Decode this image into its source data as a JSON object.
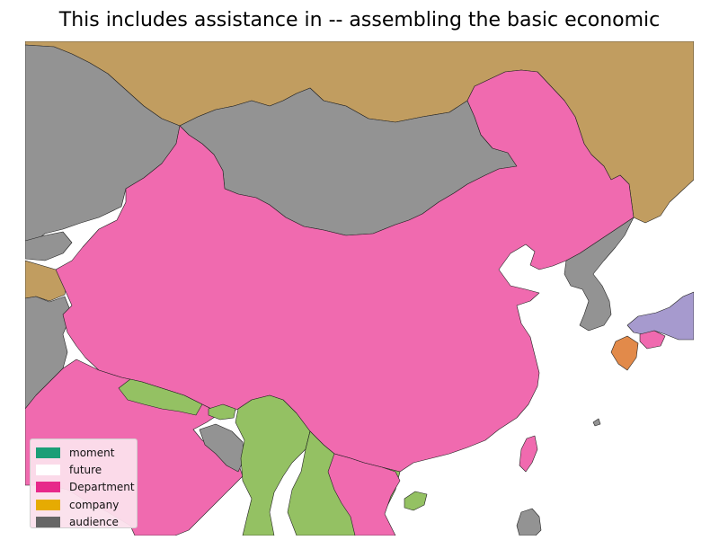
{
  "title": "This includes assistance in -- assembling the basic economic",
  "legend": {
    "items": [
      {
        "label": "moment",
        "color": "#1b9e77"
      },
      {
        "label": "future",
        "color": "#ffffff"
      },
      {
        "label": "Department",
        "color": "#e7298a"
      },
      {
        "label": "company",
        "color": "#e6ab02"
      },
      {
        "label": "audience",
        "color": "#666666"
      }
    ]
  },
  "colors": {
    "pink_region": "#f06aaf",
    "gray_region": "#939393",
    "tan_region": "#c19d60",
    "green_region": "#94c163",
    "purple_region": "#a69ace",
    "orange_region": "#e28a4a",
    "water": "#ffffff",
    "border": "#222222"
  }
}
